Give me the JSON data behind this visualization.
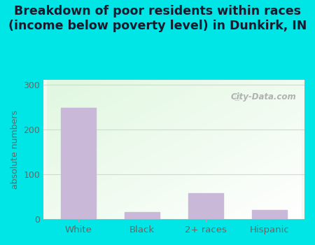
{
  "categories": [
    "White",
    "Black",
    "2+ races",
    "Hispanic"
  ],
  "values": [
    248,
    15,
    58,
    20
  ],
  "bar_color": "#c9b8d8",
  "title": "Breakdown of poor residents within races\n(income below poverty level) in Dunkirk, IN",
  "ylabel": "absolute numbers",
  "ylim": [
    0,
    310
  ],
  "yticks": [
    0,
    100,
    200,
    300
  ],
  "outer_bg": "#00e5e5",
  "title_fontsize": 12.5,
  "title_color": "#1a1a2e",
  "tick_color": "#666666",
  "watermark": "City-Data.com"
}
